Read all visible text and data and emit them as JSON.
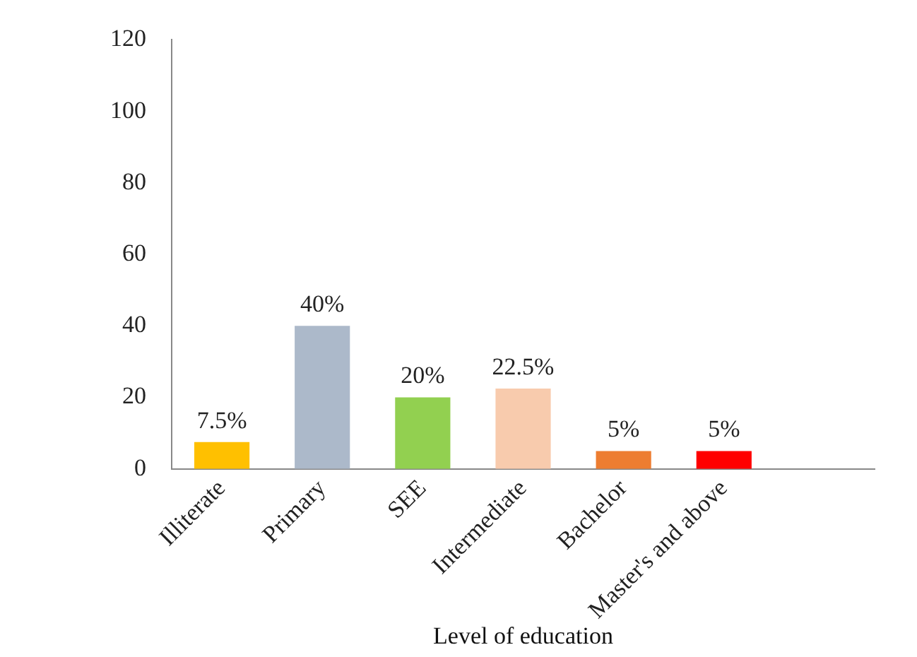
{
  "chart_data": {
    "type": "bar",
    "xlabel": "Level of education",
    "categories": [
      "Illiterate",
      "Primary",
      "SEE",
      "Intermediate",
      "Bachelor",
      "Master's and above",
      null
    ],
    "values": [
      7.5,
      40,
      20,
      22.5,
      5,
      5,
      null
    ],
    "colors": [
      "#ffc000",
      "#acb9ca",
      "#92d050",
      "#f8cbad",
      "#ed7d31",
      "#ff0000",
      "#000000"
    ],
    "value_labels": [
      "7.5%",
      "40%",
      "20%",
      "22.5%",
      "5%",
      "5%",
      null
    ],
    "ylim": [
      0,
      120
    ],
    "yticks": [
      0,
      20,
      40,
      60,
      80,
      100,
      120
    ],
    "grid": false,
    "legend": false
  }
}
